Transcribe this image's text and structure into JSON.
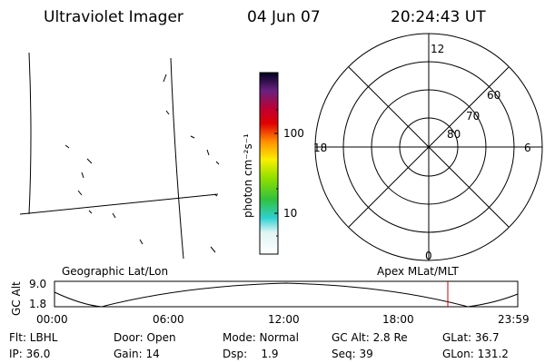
{
  "header": {
    "instrument": "Ultraviolet Imager",
    "date": "04 Jun 07",
    "time": "20:24:43 UT"
  },
  "colorbar": {
    "label": "photon cm⁻²s⁻¹",
    "ticks": [
      "100",
      "10"
    ]
  },
  "polar": {
    "mlt_labels": [
      "12",
      "18",
      "6",
      "0"
    ],
    "lat_labels": [
      "60",
      "70",
      "80"
    ]
  },
  "orbit": {
    "y_label": "GC Alt",
    "y_ticks": [
      "9.0",
      "1.8"
    ],
    "left_title": "Geographic Lat/Lon",
    "right_title": "Apex MLat/MLT",
    "time_ticks": [
      "00:00",
      "06:00",
      "12:00",
      "18:00",
      "23:59"
    ]
  },
  "status": {
    "rows": [
      [
        "Flt: LBHL",
        "Door: Open",
        "Mode: Normal",
        "GC Alt: 2.8 Re",
        "GLat: 36.7"
      ],
      [
        "IP: 36.0",
        "Gain: 14",
        "Dsp:    1.9",
        "Seq: 39",
        "GLon: 131.2"
      ]
    ]
  }
}
